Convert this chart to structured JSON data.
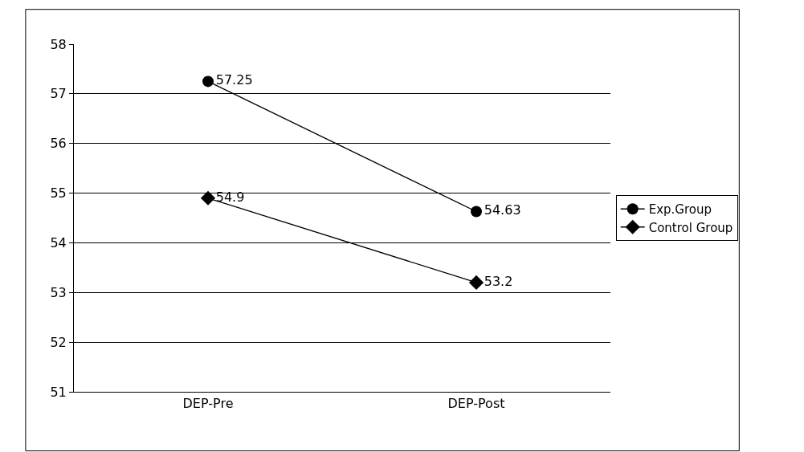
{
  "chart_data": {
    "type": "line",
    "categories": [
      "DEP-Pre",
      "DEP-Post"
    ],
    "series": [
      {
        "name": "Exp.Group",
        "color": "#000000",
        "marker": "circle",
        "values": [
          57.25,
          54.63
        ]
      },
      {
        "name": "Control Group",
        "color": "#000000",
        "marker": "diamond",
        "values": [
          54.9,
          53.2
        ]
      }
    ],
    "ylim": [
      51,
      58
    ],
    "yticks": [
      51,
      52,
      53,
      54,
      55,
      56,
      57,
      58
    ],
    "grid": "y",
    "legend": "right",
    "data_labels": true,
    "line_style": "solid"
  }
}
